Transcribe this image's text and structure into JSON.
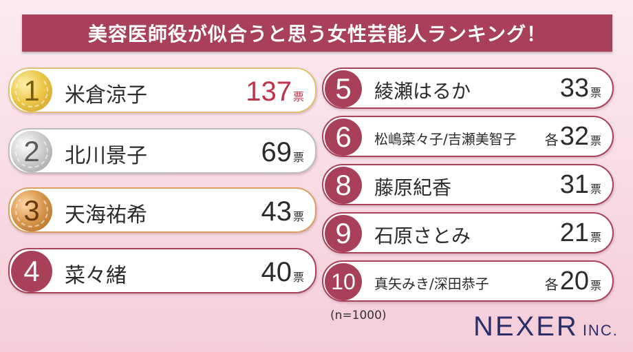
{
  "title": "美容医師役が似合うと思う女性芸能人ランキング！",
  "sample_note": "(n=1000)",
  "logo": {
    "main": "NEXER",
    "inc": "INC."
  },
  "colors": {
    "accent": "#a8405a",
    "highlight": "#c0334a"
  },
  "chart_data": {
    "type": "table",
    "title": "美容医師役が似合うと思う女性芸能人ランキング！",
    "unit": "票",
    "rows": [
      {
        "rank": "1",
        "name": "米倉涼子",
        "prefix": "",
        "votes": "137"
      },
      {
        "rank": "2",
        "name": "北川景子",
        "prefix": "",
        "votes": "69"
      },
      {
        "rank": "3",
        "name": "天海祐希",
        "prefix": "",
        "votes": "43"
      },
      {
        "rank": "4",
        "name": "菜々緒",
        "prefix": "",
        "votes": "40"
      },
      {
        "rank": "5",
        "name": "綾瀬はるか",
        "prefix": "",
        "votes": "33"
      },
      {
        "rank": "6",
        "name": "松嶋菜々子/吉瀬美智子",
        "prefix": "各",
        "votes": "32"
      },
      {
        "rank": "8",
        "name": "藤原紀香",
        "prefix": "",
        "votes": "31"
      },
      {
        "rank": "9",
        "name": "石原さとみ",
        "prefix": "",
        "votes": "21"
      },
      {
        "rank": "10",
        "name": "真矢みき/深田恭子",
        "prefix": "各",
        "votes": "20"
      }
    ]
  }
}
